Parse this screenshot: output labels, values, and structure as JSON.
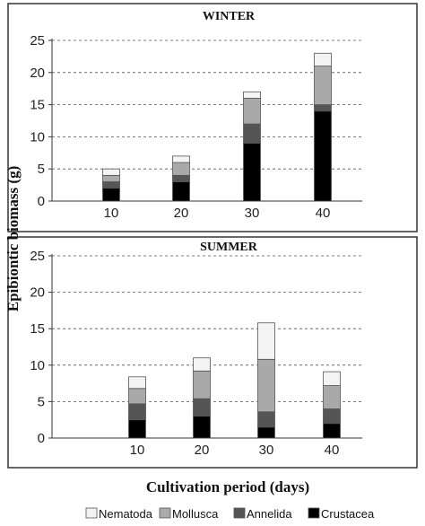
{
  "chart_data": {
    "type": "bar",
    "stacked": true,
    "ylabel": "Epibiontic biomass (g)",
    "xlabel": "Cultivation period (days)",
    "legend": [
      "Nematoda",
      "Mollusca",
      "Annelida",
      "Crustacea"
    ],
    "colors": {
      "Crustacea": "#000000",
      "Annelida": "#555555",
      "Mollusca": "#a9a9a9",
      "Nematoda": "#f3f3f3"
    },
    "panels": [
      {
        "title": "WINTER",
        "categories": [
          "10",
          "20",
          "30",
          "40"
        ],
        "ylim": [
          0,
          25
        ],
        "yticks": [
          "0",
          "5",
          "10",
          "15",
          "20",
          "25"
        ],
        "series": [
          {
            "name": "Crustacea",
            "values": [
              2,
              3,
              9,
              14
            ]
          },
          {
            "name": "Annelida",
            "values": [
              1,
              1,
              3,
              1
            ]
          },
          {
            "name": "Mollusca",
            "values": [
              1,
              2,
              4,
              6
            ]
          },
          {
            "name": "Nematoda",
            "values": [
              1,
              1,
              1,
              2
            ]
          }
        ]
      },
      {
        "title": "SUMMER",
        "categories": [
          "10",
          "20",
          "30",
          "40"
        ],
        "ylim": [
          0,
          25
        ],
        "yticks": [
          "0",
          "5",
          "10",
          "15",
          "20",
          "25"
        ],
        "series": [
          {
            "name": "Crustacea",
            "values": [
              2.5,
              3,
              1.5,
              2
            ]
          },
          {
            "name": "Annelida",
            "values": [
              2.2,
              2.4,
              2.1,
              2
            ]
          },
          {
            "name": "Mollusca",
            "values": [
              2.1,
              3.8,
              7.2,
              3.2
            ]
          },
          {
            "name": "Nematoda",
            "values": [
              1.6,
              1.8,
              5,
              1.9
            ]
          }
        ]
      }
    ]
  }
}
